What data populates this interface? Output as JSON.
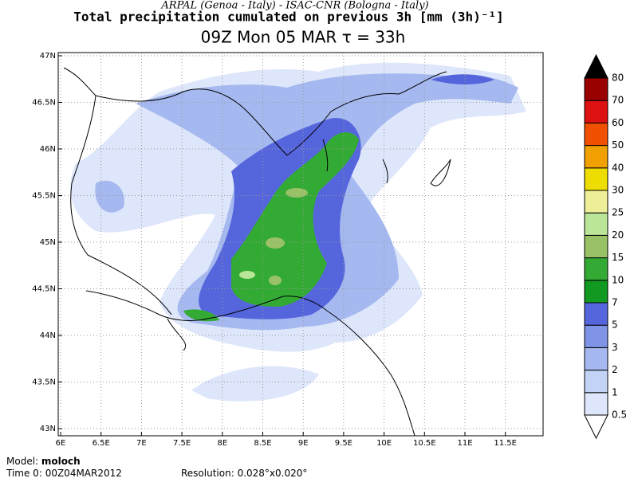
{
  "header": {
    "credit": "ARPAL (Genoa - Italy)  -  ISAC-CNR (Bologna - Italy)",
    "title": "Total precipitation cumulated on previous 3h [mm (3h)⁻¹]",
    "subtitle": "09Z Mon 05 MAR  τ = 33h"
  },
  "map": {
    "lonticks": [
      {
        "value": 6,
        "label": "6E"
      },
      {
        "value": 6.5,
        "label": "6.5E"
      },
      {
        "value": 7,
        "label": "7E"
      },
      {
        "value": 7.5,
        "label": "7.5E"
      },
      {
        "value": 8,
        "label": "8E"
      },
      {
        "value": 8.5,
        "label": "8.5E"
      },
      {
        "value": 9,
        "label": "9E"
      },
      {
        "value": 9.5,
        "label": "9.5E"
      },
      {
        "value": 10,
        "label": "10E"
      },
      {
        "value": 10.5,
        "label": "10.5E"
      },
      {
        "value": 11,
        "label": "11E"
      },
      {
        "value": 11.5,
        "label": "11.5E"
      }
    ],
    "latticks": [
      {
        "value": 47,
        "label": "47N"
      },
      {
        "value": 46.5,
        "label": "46.5N"
      },
      {
        "value": 46,
        "label": "46N"
      },
      {
        "value": 45.5,
        "label": "45.5N"
      },
      {
        "value": 45,
        "label": "45N"
      },
      {
        "value": 44.5,
        "label": "44.5N"
      },
      {
        "value": 44,
        "label": "44N"
      },
      {
        "value": 43.5,
        "label": "43.5N"
      },
      {
        "value": 43,
        "label": "43N"
      }
    ]
  },
  "colorbar": {
    "levels": [
      0.5,
      1,
      2,
      3,
      5,
      7,
      10,
      15,
      20,
      25,
      30,
      40,
      50,
      60,
      70,
      80
    ],
    "colors": [
      "#ffffff",
      "#dde6fa",
      "#c3d3f5",
      "#a5b8ef",
      "#7f94e6",
      "#5566dd",
      "#119922",
      "#33aa33",
      "#99c266",
      "#bbe699",
      "#eeee99",
      "#eedd00",
      "#f0a000",
      "#f05000",
      "#dd1111",
      "#990000",
      "#000000"
    ]
  },
  "footer": {
    "model_label": "Model:",
    "model": "moloch",
    "time_label": "Time 0:",
    "time": "00Z04MAR2012",
    "resolution_label": "Resolution:",
    "resolution": "0.028°x0.020°"
  }
}
